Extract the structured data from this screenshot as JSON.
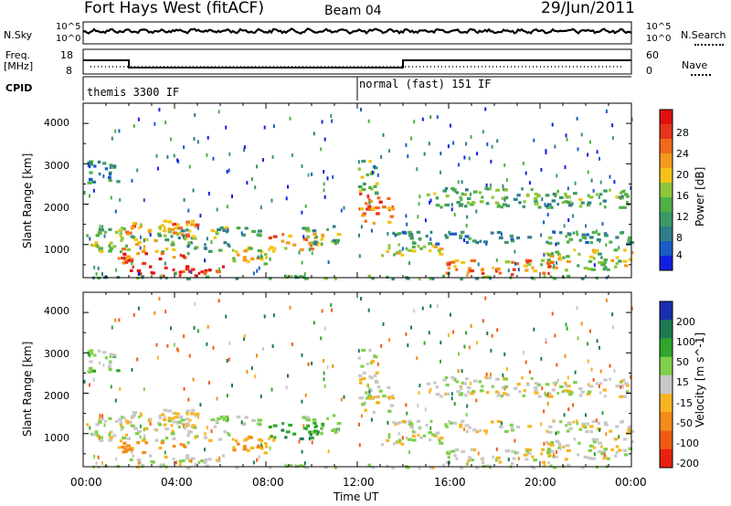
{
  "header": {
    "station": "Fort Hays West (fitACF)",
    "beam": "Beam 04",
    "date": "29/Jun/2011"
  },
  "summary_labels": {
    "nsky": "N.Sky",
    "nsearch": "N.Search",
    "freq_line1": "Freq.",
    "freq_line2": "[MHz]",
    "nave": "Nave",
    "cpid": "CPID",
    "noise_ticks_left": [
      "10^5",
      "10^0"
    ],
    "noise_ticks_right": [
      "10^5",
      "10^0"
    ],
    "freq_ticks": [
      "18",
      "8"
    ],
    "nave_ticks": [
      "60",
      "0"
    ]
  },
  "cpid_segments": [
    {
      "start_hour": 0,
      "label": "themis 3300 IF"
    },
    {
      "start_hour": 12,
      "label": "normal (fast) 151 IF"
    }
  ],
  "x_axis": {
    "title": "Time UT",
    "tick_labels": [
      "00:00",
      "04:00",
      "08:00",
      "12:00",
      "16:00",
      "20:00",
      "00:00"
    ],
    "range_hours": [
      0,
      24
    ]
  },
  "y_axis": {
    "title": "Slant Range [km]",
    "tick_labels": [
      "1000",
      "2000",
      "3000",
      "4000"
    ],
    "range_km": [
      180,
      4500
    ]
  },
  "power_scale": {
    "title": "Power [dB]",
    "tick_labels": [
      "4",
      "8",
      "12",
      "16",
      "20",
      "24",
      "28"
    ],
    "colors": [
      "#1020e0",
      "#1a5cc8",
      "#2f7d8c",
      "#3a9a66",
      "#4fb046",
      "#8cc63a",
      "#f2c415",
      "#f49a1c",
      "#f06a1a",
      "#e8341c",
      "#e01010"
    ]
  },
  "velocity_scale": {
    "title": "Velocity [m s^-1]",
    "tick_labels": [
      "200",
      "100",
      "50",
      "15",
      "-15",
      "-50",
      "-100",
      "-200"
    ],
    "colors": [
      "#1a2fb0",
      "#1d7a50",
      "#2fa62c",
      "#7fd04a",
      "#c8c8c8",
      "#f8b420",
      "#f58a18",
      "#f25a14",
      "#e82010"
    ]
  },
  "chart_data": {
    "type": "heatmap",
    "panels": [
      "Power",
      "Velocity"
    ],
    "x": {
      "label": "Time UT",
      "range_hours": [
        0,
        24
      ]
    },
    "y": {
      "label": "Slant Range [km]",
      "range_km": [
        180,
        4500
      ]
    },
    "freq_mhz": [
      {
        "from_hour": 0,
        "to_hour": 2,
        "value": 14
      },
      {
        "from_hour": 2,
        "to_hour": 14,
        "value": 10
      },
      {
        "from_hour": 14,
        "to_hour": 24,
        "value": 14
      }
    ],
    "scatter_bands": [
      {
        "t0": 0.1,
        "t1": 1.6,
        "r0": 2550,
        "r1": 3100,
        "power": 10,
        "vel": 30
      },
      {
        "t0": 0.0,
        "t1": 5.0,
        "r0": 1150,
        "r1": 1450,
        "power": 14,
        "vel": 0
      },
      {
        "t0": 1.8,
        "t1": 5.0,
        "r0": 1200,
        "r1": 1650,
        "power": 22,
        "vel": -10
      },
      {
        "t0": 0.0,
        "t1": 4.0,
        "r0": 850,
        "r1": 1150,
        "power": 18,
        "vel": 0
      },
      {
        "t0": 2.0,
        "t1": 6.2,
        "r0": 250,
        "r1": 500,
        "power": 27,
        "vel": 10
      },
      {
        "t0": 1.5,
        "t1": 4.5,
        "r0": 560,
        "r1": 820,
        "power": 25,
        "vel": -60
      },
      {
        "t0": 4.5,
        "t1": 6.5,
        "r0": 800,
        "r1": 1100,
        "power": 12,
        "vel": 0
      },
      {
        "t0": 5.5,
        "t1": 8.0,
        "r0": 1150,
        "r1": 1450,
        "power": 14,
        "vel": 20
      },
      {
        "t0": 6.5,
        "t1": 8.5,
        "r0": 550,
        "r1": 1000,
        "power": 17,
        "vel": -40
      },
      {
        "t0": 8.0,
        "t1": 10.5,
        "r0": 900,
        "r1": 1300,
        "power": 22,
        "vel": 80
      },
      {
        "t0": 9.5,
        "t1": 11.2,
        "r0": 1050,
        "r1": 1500,
        "power": 13,
        "vel": 40
      },
      {
        "t0": 12.0,
        "t1": 13.6,
        "r0": 1550,
        "r1": 2300,
        "power": 23,
        "vel": 0
      },
      {
        "t0": 12.0,
        "t1": 12.8,
        "r0": 2300,
        "r1": 3200,
        "power": 14,
        "vel": 0
      },
      {
        "t0": 13.0,
        "t1": 16.0,
        "r0": 750,
        "r1": 1050,
        "power": 17,
        "vel": 0
      },
      {
        "t0": 13.5,
        "t1": 24.0,
        "r0": 1050,
        "r1": 1350,
        "power": 10,
        "vel": 0
      },
      {
        "t0": 15.5,
        "t1": 20.5,
        "r0": 280,
        "r1": 650,
        "power": 22,
        "vel": 0
      },
      {
        "t0": 15.0,
        "t1": 24.0,
        "r0": 1950,
        "r1": 2450,
        "power": 13,
        "vel": 0
      },
      {
        "t0": 20.0,
        "t1": 24.0,
        "r0": 400,
        "r1": 900,
        "power": 16,
        "vel": 0
      },
      {
        "t0": 0.0,
        "t1": 24.0,
        "r0": 180,
        "r1": 260,
        "power": 12,
        "vel": 10
      }
    ]
  }
}
